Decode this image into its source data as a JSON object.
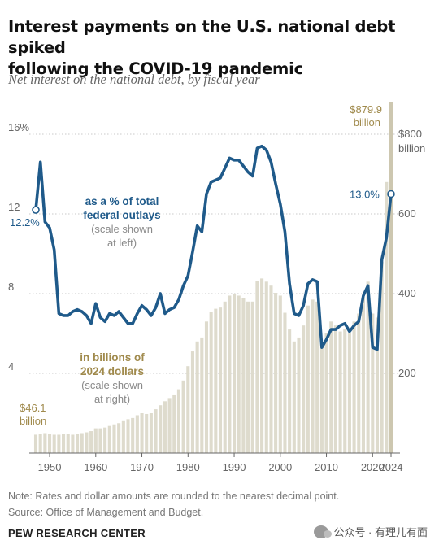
{
  "header": {
    "title_line1": "Interest payments on the U.S. national debt spiked",
    "title_line2": "following the COVID-19 pandemic",
    "subtitle": "Net interest on the national debt, by fiscal year"
  },
  "footer": {
    "note": "Note: Rates and dollar amounts are rounded to the nearest decimal point.",
    "source": "Source: Office of Management and Budget.",
    "brand": "PEW RESEARCH CENTER",
    "watermark": "公众号 · 有理儿有面",
    "watermark_icon": "wechat-icon"
  },
  "chart_data": {
    "type": "bar+line",
    "x_start": 1947,
    "x_end": 2024,
    "x_ticks": [
      "1950",
      "1960",
      "1970",
      "1980",
      "1990",
      "2000",
      "2010",
      "2020",
      "2024"
    ],
    "left_axis": {
      "ticks": [
        "4",
        "8",
        "12",
        "16%"
      ],
      "values": [
        4,
        8,
        12,
        16
      ],
      "range": [
        0,
        17.5
      ]
    },
    "right_axis": {
      "ticks": [
        "200",
        "400",
        "600",
        "$800",
        "billion"
      ],
      "values": [
        200,
        400,
        600,
        800
      ],
      "range": [
        0,
        875
      ]
    },
    "colors": {
      "line": "#1f5a8a",
      "bar": "#dedbcd",
      "bar_last": "#cdc7b0",
      "label_gold": "#a08a4c",
      "label_gray": "#8a8a8a",
      "axis": "#999999"
    },
    "series": [
      {
        "name": "as a % of total federal outlays",
        "kind": "line",
        "axis": "left",
        "x": [
          1947,
          1948,
          1949,
          1950,
          1951,
          1952,
          1953,
          1954,
          1955,
          1956,
          1957,
          1958,
          1959,
          1960,
          1961,
          1962,
          1963,
          1964,
          1965,
          1966,
          1967,
          1968,
          1969,
          1970,
          1971,
          1972,
          1973,
          1974,
          1975,
          1976,
          1977,
          1978,
          1979,
          1980,
          1981,
          1982,
          1983,
          1984,
          1985,
          1986,
          1987,
          1988,
          1989,
          1990,
          1991,
          1992,
          1993,
          1994,
          1995,
          1996,
          1997,
          1998,
          1999,
          2000,
          2001,
          2002,
          2003,
          2004,
          2005,
          2006,
          2007,
          2008,
          2009,
          2010,
          2011,
          2012,
          2013,
          2014,
          2015,
          2016,
          2017,
          2018,
          2019,
          2020,
          2021,
          2022,
          2023,
          2024
        ],
        "values": [
          12.2,
          14.6,
          11.6,
          11.3,
          10.2,
          7.0,
          6.9,
          6.9,
          7.1,
          7.2,
          7.1,
          6.9,
          6.5,
          7.5,
          6.8,
          6.6,
          7.0,
          6.9,
          7.1,
          6.8,
          6.5,
          6.5,
          7.0,
          7.4,
          7.2,
          6.9,
          7.3,
          8.0,
          7.0,
          7.2,
          7.3,
          7.7,
          8.4,
          8.9,
          10.1,
          11.4,
          11.1,
          13.0,
          13.6,
          13.7,
          13.8,
          14.3,
          14.8,
          14.7,
          14.7,
          14.4,
          14.1,
          13.9,
          15.3,
          15.4,
          15.2,
          14.6,
          13.5,
          12.5,
          11.1,
          8.5,
          7.0,
          6.9,
          7.4,
          8.5,
          8.7,
          8.6,
          5.3,
          5.7,
          6.2,
          6.2,
          6.4,
          6.5,
          6.1,
          6.4,
          6.6,
          7.9,
          8.4,
          5.3,
          5.2,
          9.7,
          10.8,
          13.0
        ]
      },
      {
        "name": "in billions of 2024 dollars",
        "kind": "bar",
        "axis": "right",
        "x": [
          1947,
          1948,
          1949,
          1950,
          1951,
          1952,
          1953,
          1954,
          1955,
          1956,
          1957,
          1958,
          1959,
          1960,
          1961,
          1962,
          1963,
          1964,
          1965,
          1966,
          1967,
          1968,
          1969,
          1970,
          1971,
          1972,
          1973,
          1974,
          1975,
          1976,
          1977,
          1978,
          1979,
          1980,
          1981,
          1982,
          1983,
          1984,
          1985,
          1986,
          1987,
          1988,
          1989,
          1990,
          1991,
          1992,
          1993,
          1994,
          1995,
          1996,
          1997,
          1998,
          1999,
          2000,
          2001,
          2002,
          2003,
          2004,
          2005,
          2006,
          2007,
          2008,
          2009,
          2010,
          2011,
          2012,
          2013,
          2014,
          2015,
          2016,
          2017,
          2018,
          2019,
          2020,
          2021,
          2022,
          2023,
          2024
        ],
        "values": [
          46.1,
          48,
          50,
          48,
          46,
          46,
          48,
          48,
          46,
          48,
          50,
          52,
          55,
          62,
          62,
          64,
          68,
          72,
          75,
          80,
          85,
          88,
          95,
          100,
          98,
          100,
          110,
          120,
          130,
          138,
          145,
          160,
          182,
          218,
          255,
          280,
          290,
          330,
          355,
          362,
          365,
          380,
          395,
          400,
          395,
          388,
          380,
          380,
          432,
          438,
          430,
          420,
          402,
          395,
          352,
          310,
          280,
          290,
          320,
          370,
          385,
          380,
          280,
          300,
          330,
          320,
          305,
          310,
          300,
          330,
          350,
          390,
          430,
          350,
          340,
          480,
          680,
          879.9
        ]
      }
    ],
    "annotations": {
      "pct_label": [
        "as a % of total",
        "federal outlays"
      ],
      "pct_note": [
        "(scale shown",
        "at left)"
      ],
      "usd_label": [
        "in billions of",
        "2024 dollars"
      ],
      "usd_note": [
        "(scale shown",
        "at right)"
      ],
      "first_pct": "12.2%",
      "last_pct": "13.0%",
      "first_usd": [
        "$46.1",
        "billion"
      ],
      "last_usd": [
        "$879.9",
        "billion"
      ]
    }
  }
}
